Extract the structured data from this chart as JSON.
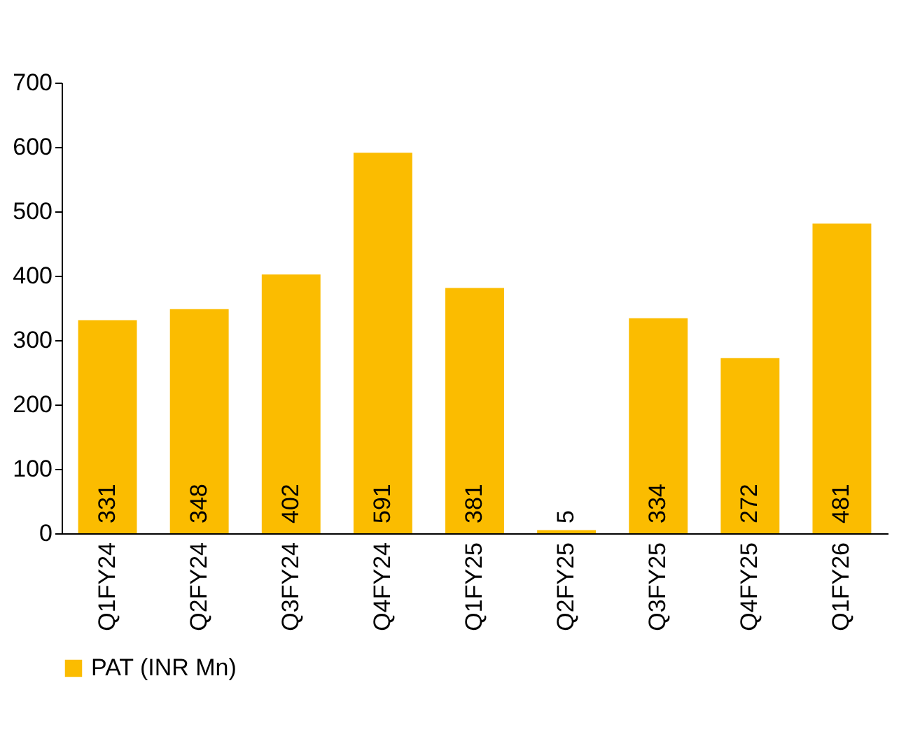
{
  "chart_data": {
    "type": "bar",
    "categories": [
      "Q1FY24",
      "Q2FY24",
      "Q3FY24",
      "Q4FY24",
      "Q1FY25",
      "Q2FY25",
      "Q3FY25",
      "Q4FY25",
      "Q1FY26"
    ],
    "series": [
      {
        "name": "PAT (INR  Mn)",
        "color": "#fbbc00",
        "values": [
          331,
          348,
          402,
          591,
          381,
          5,
          334,
          272,
          481
        ]
      }
    ],
    "ylim": [
      0,
      700
    ],
    "yticks": [
      0,
      100,
      200,
      300,
      400,
      500,
      600,
      700
    ],
    "grid": false,
    "legend": "bottom",
    "data_labels": true
  }
}
